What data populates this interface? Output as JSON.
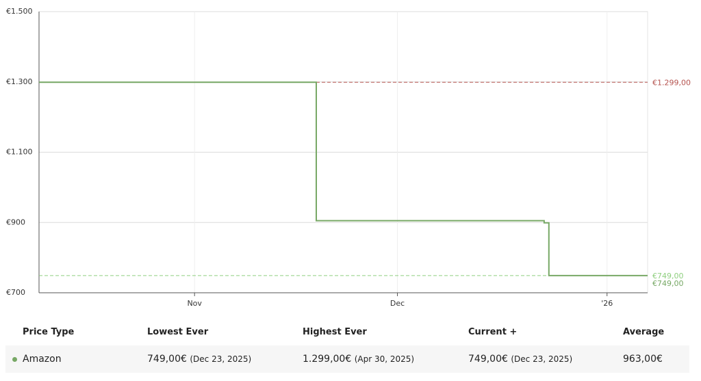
{
  "chart_data": {
    "type": "step-line",
    "x": [
      282,
      323,
      323,
      356.7,
      356.7,
      357.4,
      357.4,
      372
    ],
    "values": [
      1299,
      1299,
      905,
      905,
      899,
      899,
      749,
      749
    ],
    "color": "#77a865",
    "xlim": [
      282,
      372
    ],
    "xticks": [
      {
        "value": 305,
        "label": "Nov"
      },
      {
        "value": 335,
        "label": "Dec"
      },
      {
        "value": 366,
        "label": "'26"
      }
    ],
    "ylim": [
      700,
      1500
    ],
    "yticks": [
      {
        "value": 700,
        "label": "€700"
      },
      {
        "value": 900,
        "label": "€900"
      },
      {
        "value": 1100,
        "label": "€1.100"
      },
      {
        "value": 1300,
        "label": "€1.300"
      },
      {
        "value": 1500,
        "label": "€1.500"
      }
    ],
    "grid": true,
    "reference_lines": [
      {
        "value": 1299,
        "label": "€1.299,00",
        "color": "#b5534f",
        "dashed": true
      },
      {
        "value": 749,
        "label": "€749,00",
        "color": "#8fcf7f",
        "dashed": true
      },
      {
        "value": 749,
        "label": "€749,00",
        "color": "#77a865",
        "dashed": false
      }
    ]
  },
  "table": {
    "headers": [
      "Price Type",
      "Lowest Ever",
      "Highest Ever",
      "Current +",
      "Average"
    ],
    "rows": [
      [
        {
          "text": "Amazon"
        },
        {
          "text": "749,00€",
          "date": "(Dec 23, 2025)"
        },
        {
          "text": "1.299,00€",
          "date": "(Apr 30, 2025)"
        },
        {
          "text": "749,00€",
          "date": "(Dec 23, 2025)"
        },
        {
          "text": "963,00€"
        }
      ]
    ]
  }
}
